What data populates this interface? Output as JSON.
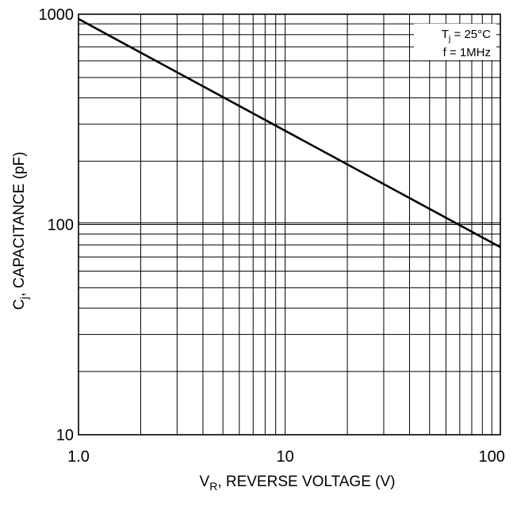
{
  "chart_data": {
    "type": "line",
    "x_scale": "log",
    "y_scale": "log",
    "xlim": [
      1.0,
      110
    ],
    "ylim": [
      10,
      1000
    ],
    "grid": true,
    "x_ticks": [
      {
        "value": 1,
        "label": "1.0"
      },
      {
        "value": 10,
        "label": "10"
      },
      {
        "value": 100,
        "label": "100"
      }
    ],
    "y_ticks": [
      {
        "value": 10,
        "label": "10"
      },
      {
        "value": 100,
        "label": "100"
      },
      {
        "value": 1000,
        "label": "1000"
      }
    ],
    "xlabel": {
      "main": "V",
      "sub": "R",
      "rest": ", REVERSE VOLTAGE (V)"
    },
    "ylabel": {
      "main": "C",
      "sub": "j",
      "rest": ", CAPACITANCE (pF)"
    },
    "annotations": [
      {
        "main": "T",
        "sub": "j",
        "rest": " = 25°C"
      },
      {
        "main": "f = 1MHz",
        "sub": "",
        "rest": ""
      }
    ],
    "series": [
      {
        "x": [
          1.0,
          110
        ],
        "y": [
          950,
          78
        ]
      }
    ]
  }
}
